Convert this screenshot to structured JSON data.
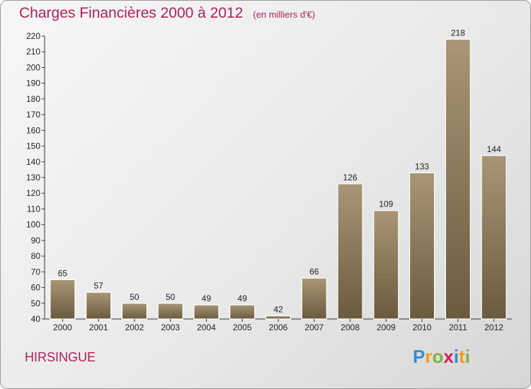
{
  "header": {
    "title": "Charges Financières 2000 à 2012",
    "subtitle": "(en milliers d'€)"
  },
  "footer": {
    "commune": "HIRSINGUE",
    "logo_text": "Proxiti",
    "logo_letters": [
      {
        "ch": "P",
        "color": "#2f8fd0"
      },
      {
        "ch": "r",
        "color": "#f39c12"
      },
      {
        "ch": "o",
        "color": "#7cb342"
      },
      {
        "ch": "x",
        "color": "#d81b60"
      },
      {
        "ch": "i",
        "color": "#2f8fd0"
      },
      {
        "ch": "t",
        "color": "#f39c12"
      },
      {
        "ch": "i",
        "color": "#7cb342"
      }
    ]
  },
  "chart_data": {
    "type": "bar",
    "categories": [
      "2000",
      "2001",
      "2002",
      "2003",
      "2004",
      "2005",
      "2006",
      "2007",
      "2008",
      "2009",
      "2010",
      "2011",
      "2012"
    ],
    "values": [
      65,
      57,
      50,
      50,
      49,
      49,
      42,
      66,
      126,
      109,
      133,
      218,
      144
    ],
    "data_labels": [
      "65",
      "57",
      "50",
      "50",
      "49",
      "49",
      "42",
      "66",
      "126",
      "109",
      "133",
      "218",
      "144"
    ],
    "title": "Charges Financières 2000 à 2012",
    "subtitle": "(en milliers d'€)",
    "xlabel": "",
    "ylabel": "",
    "ylim": [
      40,
      220
    ],
    "yticks": [
      40,
      50,
      60,
      70,
      80,
      90,
      100,
      110,
      120,
      130,
      140,
      150,
      160,
      170,
      180,
      190,
      200,
      210,
      220
    ],
    "grid": false,
    "bar_color_top": "#a89676",
    "bar_color_bottom": "#6b5a3e"
  }
}
